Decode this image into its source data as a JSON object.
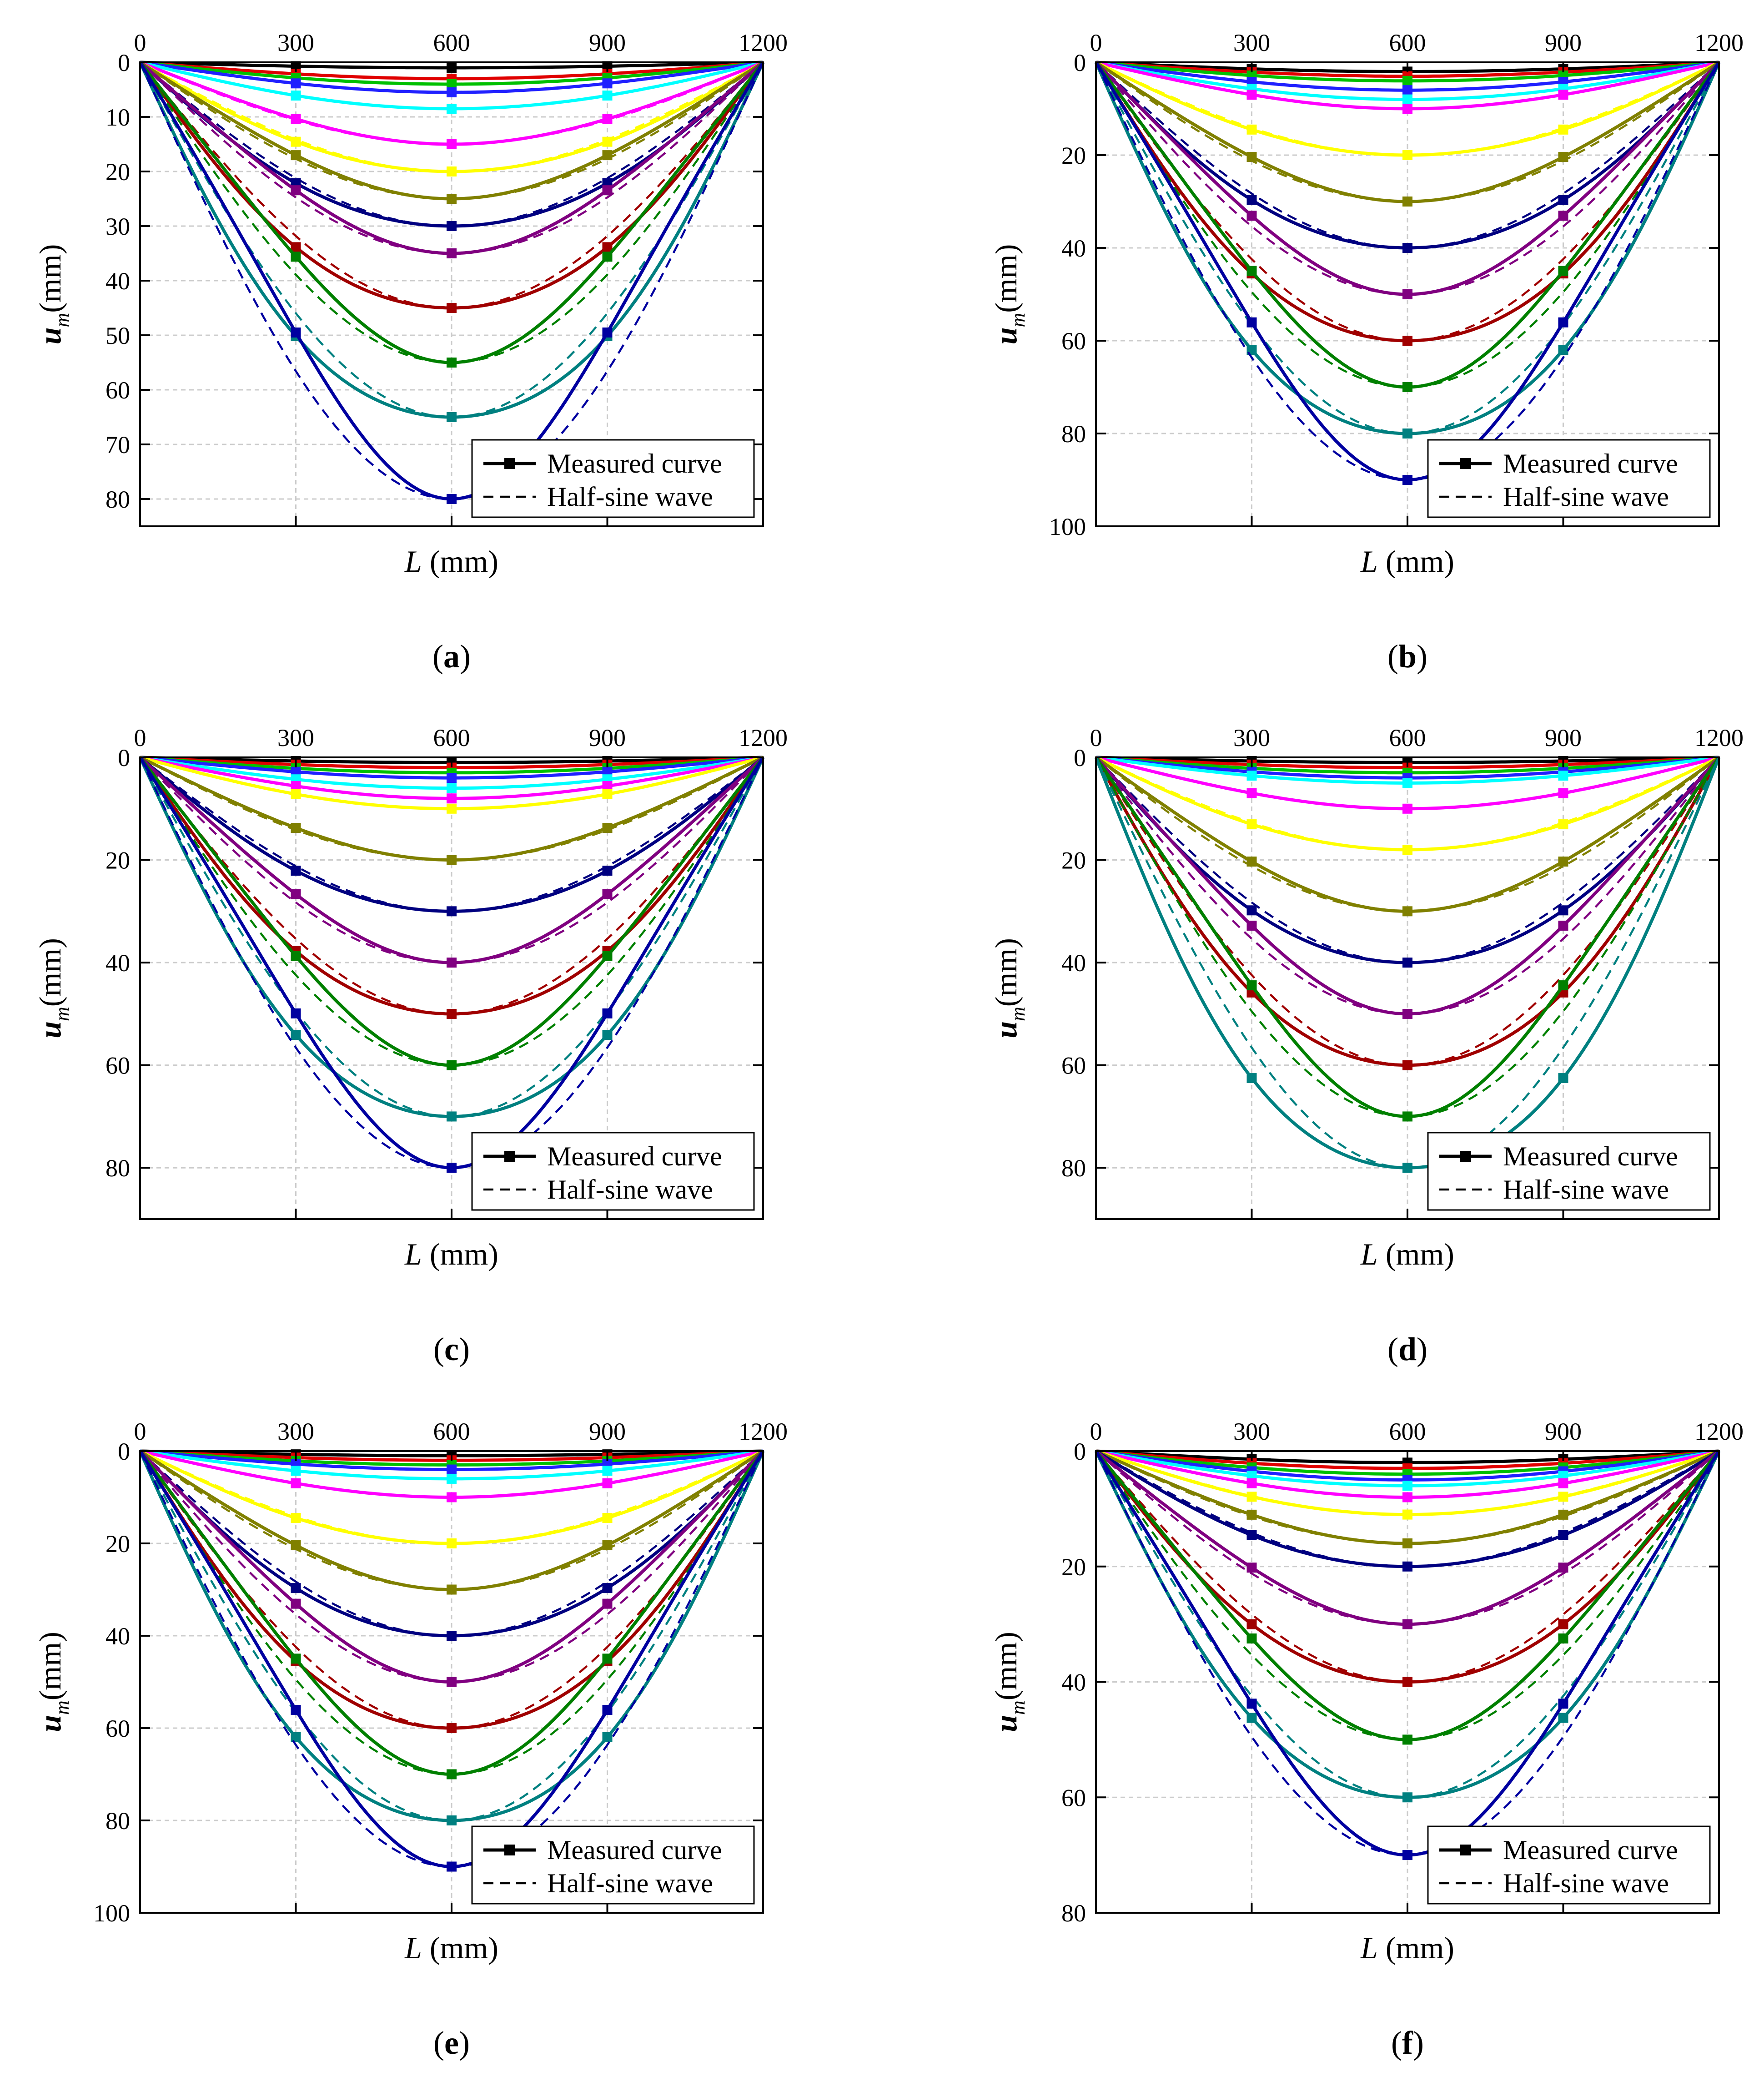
{
  "legend": {
    "measured": "Measured curve",
    "halfsine": "Half-sine wave"
  },
  "colors": [
    "#000000",
    "#e00000",
    "#00c000",
    "#2020ff",
    "#00ffff",
    "#ff00ff",
    "#ffff00",
    "#808000",
    "#000080",
    "#800080",
    "#a00000",
    "#008000",
    "#008080",
    "#0000a0"
  ],
  "chart_data": [
    {
      "type": "line",
      "label": "(a)",
      "letter": "a",
      "xlabel": "L (mm)",
      "ylabel": "u_m (mm)",
      "x": [
        0,
        300,
        600,
        900,
        1200
      ],
      "xlim": [
        0,
        1200
      ],
      "ylim": [
        0,
        85
      ],
      "yticks": [
        0,
        10,
        20,
        30,
        40,
        50,
        60,
        70,
        80
      ],
      "midspan_deflections": [
        1,
        3,
        4,
        5.5,
        8.5,
        15,
        20,
        25,
        30,
        35,
        45,
        55,
        65,
        80
      ],
      "half_sine_amplitudes": [
        1,
        3,
        4,
        5.5,
        8.5,
        15,
        20,
        25,
        30,
        35,
        45,
        55,
        65,
        80
      ],
      "legend": "bottom-right"
    },
    {
      "type": "line",
      "label": "(b)",
      "letter": "b",
      "xlabel": "L (mm)",
      "ylabel": "u_m (mm)",
      "x": [
        0,
        300,
        600,
        900,
        1200
      ],
      "xlim": [
        0,
        1200
      ],
      "ylim": [
        0,
        100
      ],
      "yticks": [
        0,
        20,
        40,
        60,
        80,
        100
      ],
      "midspan_deflections": [
        2,
        3,
        4,
        6,
        8,
        10,
        20,
        30,
        40,
        50,
        60,
        70,
        80,
        90
      ],
      "half_sine_amplitudes": [
        2,
        3,
        4,
        6,
        8,
        10,
        20,
        30,
        40,
        50,
        60,
        70,
        80,
        90
      ],
      "legend": "bottom-right"
    },
    {
      "type": "line",
      "label": "(c)",
      "letter": "c",
      "xlabel": "L (mm)",
      "ylabel": "u_m (mm)",
      "x": [
        0,
        300,
        600,
        900,
        1200
      ],
      "xlim": [
        0,
        1200
      ],
      "ylim": [
        0,
        90
      ],
      "yticks": [
        0,
        20,
        40,
        60,
        80
      ],
      "midspan_deflections": [
        1,
        2,
        3,
        4,
        6,
        8,
        10,
        20,
        30,
        40,
        50,
        60,
        70,
        80
      ],
      "half_sine_amplitudes": [
        1,
        2,
        3,
        4,
        6,
        8,
        10,
        20,
        30,
        40,
        50,
        60,
        70,
        80
      ],
      "legend": "bottom-right"
    },
    {
      "type": "line",
      "label": "(d)",
      "letter": "d",
      "xlabel": "L (mm)",
      "ylabel": "u_m (mm)",
      "x": [
        0,
        300,
        600,
        900,
        1200
      ],
      "xlim": [
        0,
        1200
      ],
      "ylim": [
        0,
        90
      ],
      "yticks": [
        0,
        20,
        40,
        60,
        80
      ],
      "midspan_deflections": [
        1,
        2,
        3,
        4,
        5,
        10,
        18,
        30,
        40,
        50,
        60,
        70,
        80
      ],
      "half_sine_amplitudes": [
        1,
        2,
        3,
        4,
        5,
        10,
        18,
        30,
        40,
        50,
        60,
        70,
        80
      ],
      "legend": "bottom-right"
    },
    {
      "type": "line",
      "label": "(e)",
      "letter": "e",
      "xlabel": "L (mm)",
      "ylabel": "u_m (mm)",
      "x": [
        0,
        300,
        600,
        900,
        1200
      ],
      "xlim": [
        0,
        1200
      ],
      "ylim": [
        0,
        100
      ],
      "yticks": [
        0,
        20,
        40,
        60,
        80,
        100
      ],
      "midspan_deflections": [
        1,
        2,
        3,
        4,
        6,
        10,
        20,
        30,
        40,
        50,
        60,
        70,
        80,
        90
      ],
      "half_sine_amplitudes": [
        1,
        2,
        3,
        4,
        6,
        10,
        20,
        30,
        40,
        50,
        60,
        70,
        80,
        90
      ],
      "legend": "bottom-right"
    },
    {
      "type": "line",
      "label": "(f)",
      "letter": "f",
      "xlabel": "L (mm)",
      "ylabel": "u_m (mm)",
      "x": [
        0,
        300,
        600,
        900,
        1200
      ],
      "xlim": [
        0,
        1200
      ],
      "ylim": [
        0,
        80
      ],
      "yticks": [
        0,
        20,
        40,
        60,
        80
      ],
      "midspan_deflections": [
        2,
        3,
        4,
        5,
        6,
        8,
        11,
        16,
        20,
        30,
        40,
        50,
        60,
        70
      ],
      "half_sine_amplitudes": [
        2,
        3,
        4,
        5,
        6,
        8,
        11,
        16,
        20,
        30,
        40,
        50,
        60,
        70
      ],
      "legend": "bottom-right"
    }
  ]
}
